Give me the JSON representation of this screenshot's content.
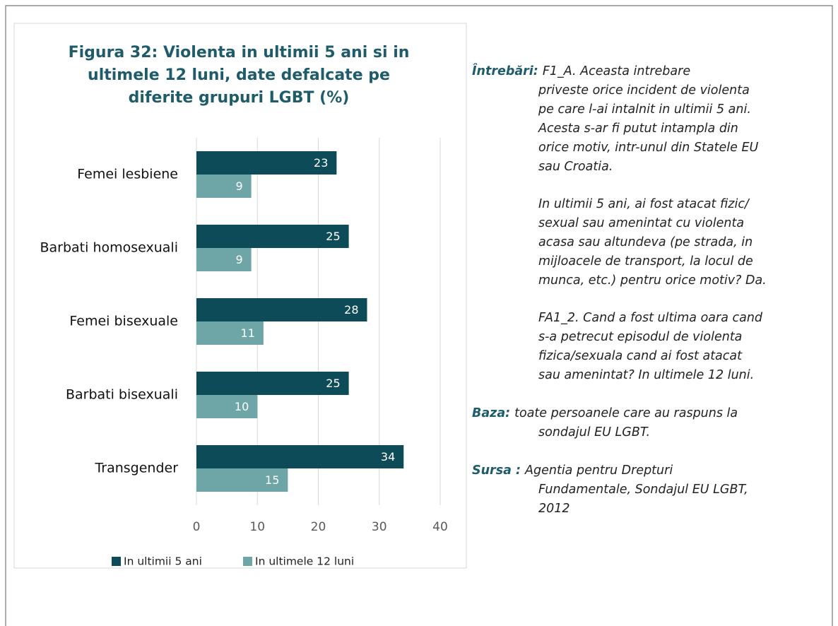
{
  "chart_data": {
    "type": "barh",
    "title": [
      "Figura 32: Violenta in ultimii 5 ani si in",
      "ultimele 12 luni, date defalcate pe",
      "diferite grupuri LGBT (%)"
    ],
    "categories": [
      "Femei lesbiene",
      "Barbati homosexuali",
      "Femei bisexuale",
      "Barbati bisexuali",
      "Transgender"
    ],
    "series": [
      {
        "name": "In ultimii 5 ani",
        "color": "#0e4b58",
        "values": [
          23,
          25,
          28,
          25,
          34
        ]
      },
      {
        "name": "In ultimele 12 luni",
        "color": "#6ea5a7",
        "values": [
          9,
          9,
          11,
          10,
          15
        ]
      }
    ],
    "xlim": [
      0,
      40
    ],
    "xticks": [
      0,
      10,
      20,
      30,
      40
    ],
    "grid": true,
    "legend": "bottom"
  },
  "notes": [
    {
      "label": "Întrebări:",
      "paragraphs": [
        [
          "F1_A. Aceasta intrebare",
          "priveste orice incident de violenta",
          "pe care l-ai intalnit in ultimii 5 ani.",
          "Acesta s-ar fi putut intampla din",
          "orice motiv, intr-unul din Statele EU",
          "sau Croatia."
        ],
        [
          "In ultimii 5 ani, ai fost atacat fizic/",
          "sexual sau amenintat cu violenta",
          "acasa sau altundeva (pe strada, in",
          "mijloacele de transport, la locul de",
          "munca, etc.) pentru orice motiv? Da."
        ],
        [
          "FA1_2. Cand a fost ultima oara cand",
          "s-a petrecut episodul de violenta",
          "fizica/sexuala cand ai fost atacat",
          "sau amenintat? In ultimele 12 luni."
        ]
      ]
    },
    {
      "label": "Baza:",
      "paragraphs": [
        [
          "toate persoanele care au raspuns la",
          "sondajul EU LGBT."
        ]
      ]
    },
    {
      "label": "Sursa :",
      "paragraphs": [
        [
          "Agentia pentru Drepturi",
          "Fundamentale, Sondajul EU LGBT,",
          "2012"
        ]
      ]
    }
  ]
}
